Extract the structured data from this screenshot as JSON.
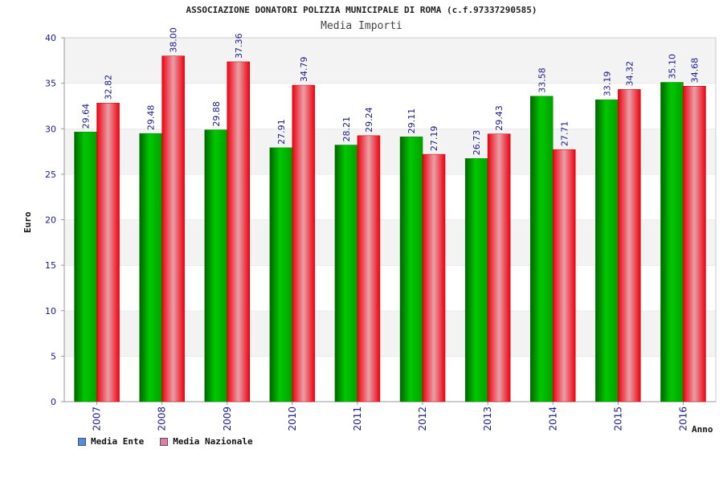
{
  "chart_data": {
    "type": "bar",
    "title": "ASSOCIAZIONE DONATORI POLIZIA MUNICIPALE DI ROMA (c.f.97337290585)",
    "subtitle": "Media Importi",
    "xlabel": "Anno",
    "ylabel": "Euro",
    "ylim": [
      0,
      40
    ],
    "yticks": [
      "0",
      "5",
      "10",
      "15",
      "20",
      "25",
      "30",
      "35",
      "40"
    ],
    "categories": [
      "2007",
      "2008",
      "2009",
      "2010",
      "2011",
      "2012",
      "2013",
      "2014",
      "2015",
      "2016"
    ],
    "series": [
      {
        "name": "Media Ente",
        "legend_color": "#4b8fe0",
        "bar_color": "#00b400",
        "values": [
          29.64,
          29.48,
          29.88,
          27.91,
          28.21,
          29.11,
          26.73,
          33.58,
          33.19,
          35.1
        ],
        "labels": [
          "29.64",
          "29.48",
          "29.88",
          "27.91",
          "28.21",
          "29.11",
          "26.73",
          "33.58",
          "33.19",
          "35.10"
        ]
      },
      {
        "name": "Media Nazionale",
        "legend_color": "#e27aa8",
        "bar_color": "#f0141e",
        "values": [
          32.82,
          38.0,
          37.36,
          34.79,
          29.24,
          27.19,
          29.43,
          27.71,
          34.32,
          34.68
        ],
        "labels": [
          "32.82",
          "38.00",
          "37.36",
          "34.79",
          "29.24",
          "27.19",
          "29.43",
          "27.71",
          "34.32",
          "34.68"
        ]
      }
    ],
    "grid": true,
    "legend_position": "bottom-left"
  }
}
